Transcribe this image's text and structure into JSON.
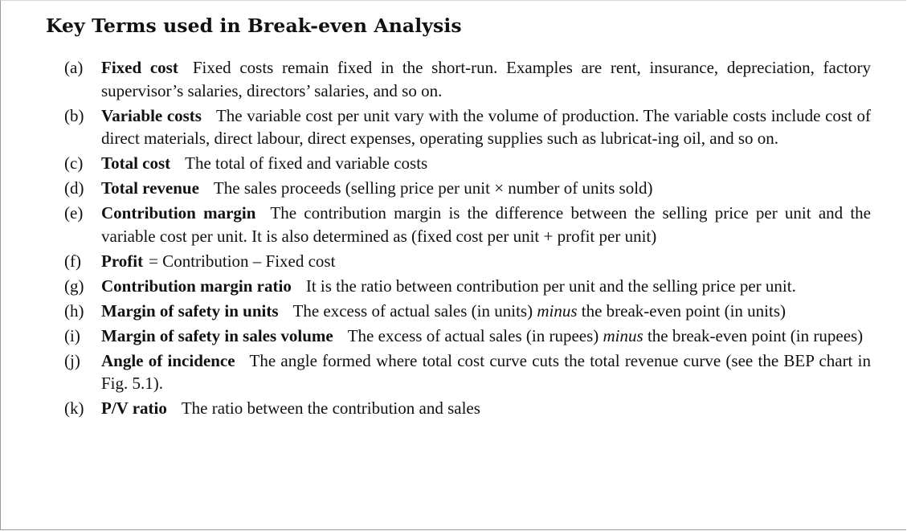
{
  "title": "Key Terms used in Break-even Analysis",
  "terms": [
    {
      "label": "(a)",
      "name": "Fixed cost",
      "text": "Fixed costs remain fixed in the short-run. Examples are rent, insurance, depreciation, factory supervisor’s salaries, directors’ salaries, and so on."
    },
    {
      "label": "(b)",
      "name": "Variable costs",
      "text": "The variable cost per unit vary with the volume of production. The variable costs include cost of direct materials, direct labour, direct expenses, operating supplies such as lubricat-ing oil, and so on."
    },
    {
      "label": "(c)",
      "name": "Total cost",
      "text": "The total of fixed and variable costs"
    },
    {
      "label": "(d)",
      "name": "Total revenue",
      "text": "The sales proceeds (selling price per unit × number of units sold)"
    },
    {
      "label": "(e)",
      "name": "Contribution margin",
      "text": "The contribution margin is the difference between the selling price per unit and the variable cost per unit. It is also determined as (fixed cost per unit + profit per unit)"
    },
    {
      "label": "(f)",
      "name": "Profit",
      "text": "= Contribution – Fixed cost"
    },
    {
      "label": "(g)",
      "name": "Contribution margin ratio",
      "text": "It is the ratio between contribution per unit and the selling price per unit."
    },
    {
      "label": "(h)",
      "name": "Margin of safety in units",
      "text_before": "The excess of actual sales (in units)",
      "text_em": "minus",
      "text_after": "the break-even point (in units)"
    },
    {
      "label": "(i)",
      "name": "Margin of safety in sales volume",
      "text_before": "The excess of actual sales (in rupees)",
      "text_em": "minus",
      "text_after": "the break-even point (in rupees)"
    },
    {
      "label": "(j)",
      "name": "Angle of incidence",
      "text": "The angle formed where total cost curve cuts the total revenue curve (see the BEP chart in Fig. 5.1)."
    },
    {
      "label": "(k)",
      "name": "P/V ratio",
      "text": "The ratio between the contribution and sales"
    }
  ]
}
